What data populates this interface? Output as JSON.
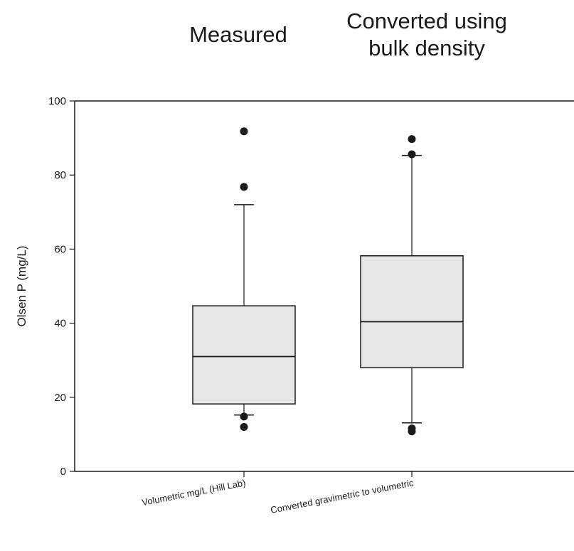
{
  "headers": [
    "Measured",
    "Converted using\nbulk density"
  ],
  "chart_data": {
    "type": "box",
    "ylabel": "Olsen P (mg/L)",
    "xlabel": "",
    "ylim": [
      0,
      100
    ],
    "yticks": [
      0,
      20,
      40,
      60,
      80,
      100
    ],
    "grid": false,
    "categories": [
      "Volumetric mg/L (Hill Lab)",
      "Converted gravimetric to volumetric"
    ],
    "boxes": [
      {
        "category": "Volumetric mg/L (Hill Lab)",
        "whisker_low": 15.2,
        "q1": 18.2,
        "median": 31.0,
        "q3": 44.7,
        "whisker_high": 72.0,
        "outliers": [
          12.0,
          14.8,
          76.8,
          91.8
        ]
      },
      {
        "category": "Converted gravimetric to volumetric",
        "whisker_low": 13.1,
        "q1": 28.0,
        "median": 40.4,
        "q3": 58.2,
        "whisker_high": 85.3,
        "outliers": [
          10.8,
          11.6,
          85.6,
          89.7
        ]
      }
    ],
    "colors": {
      "box_fill": "#e6e6e6",
      "stroke": "#1a1a1a"
    }
  }
}
